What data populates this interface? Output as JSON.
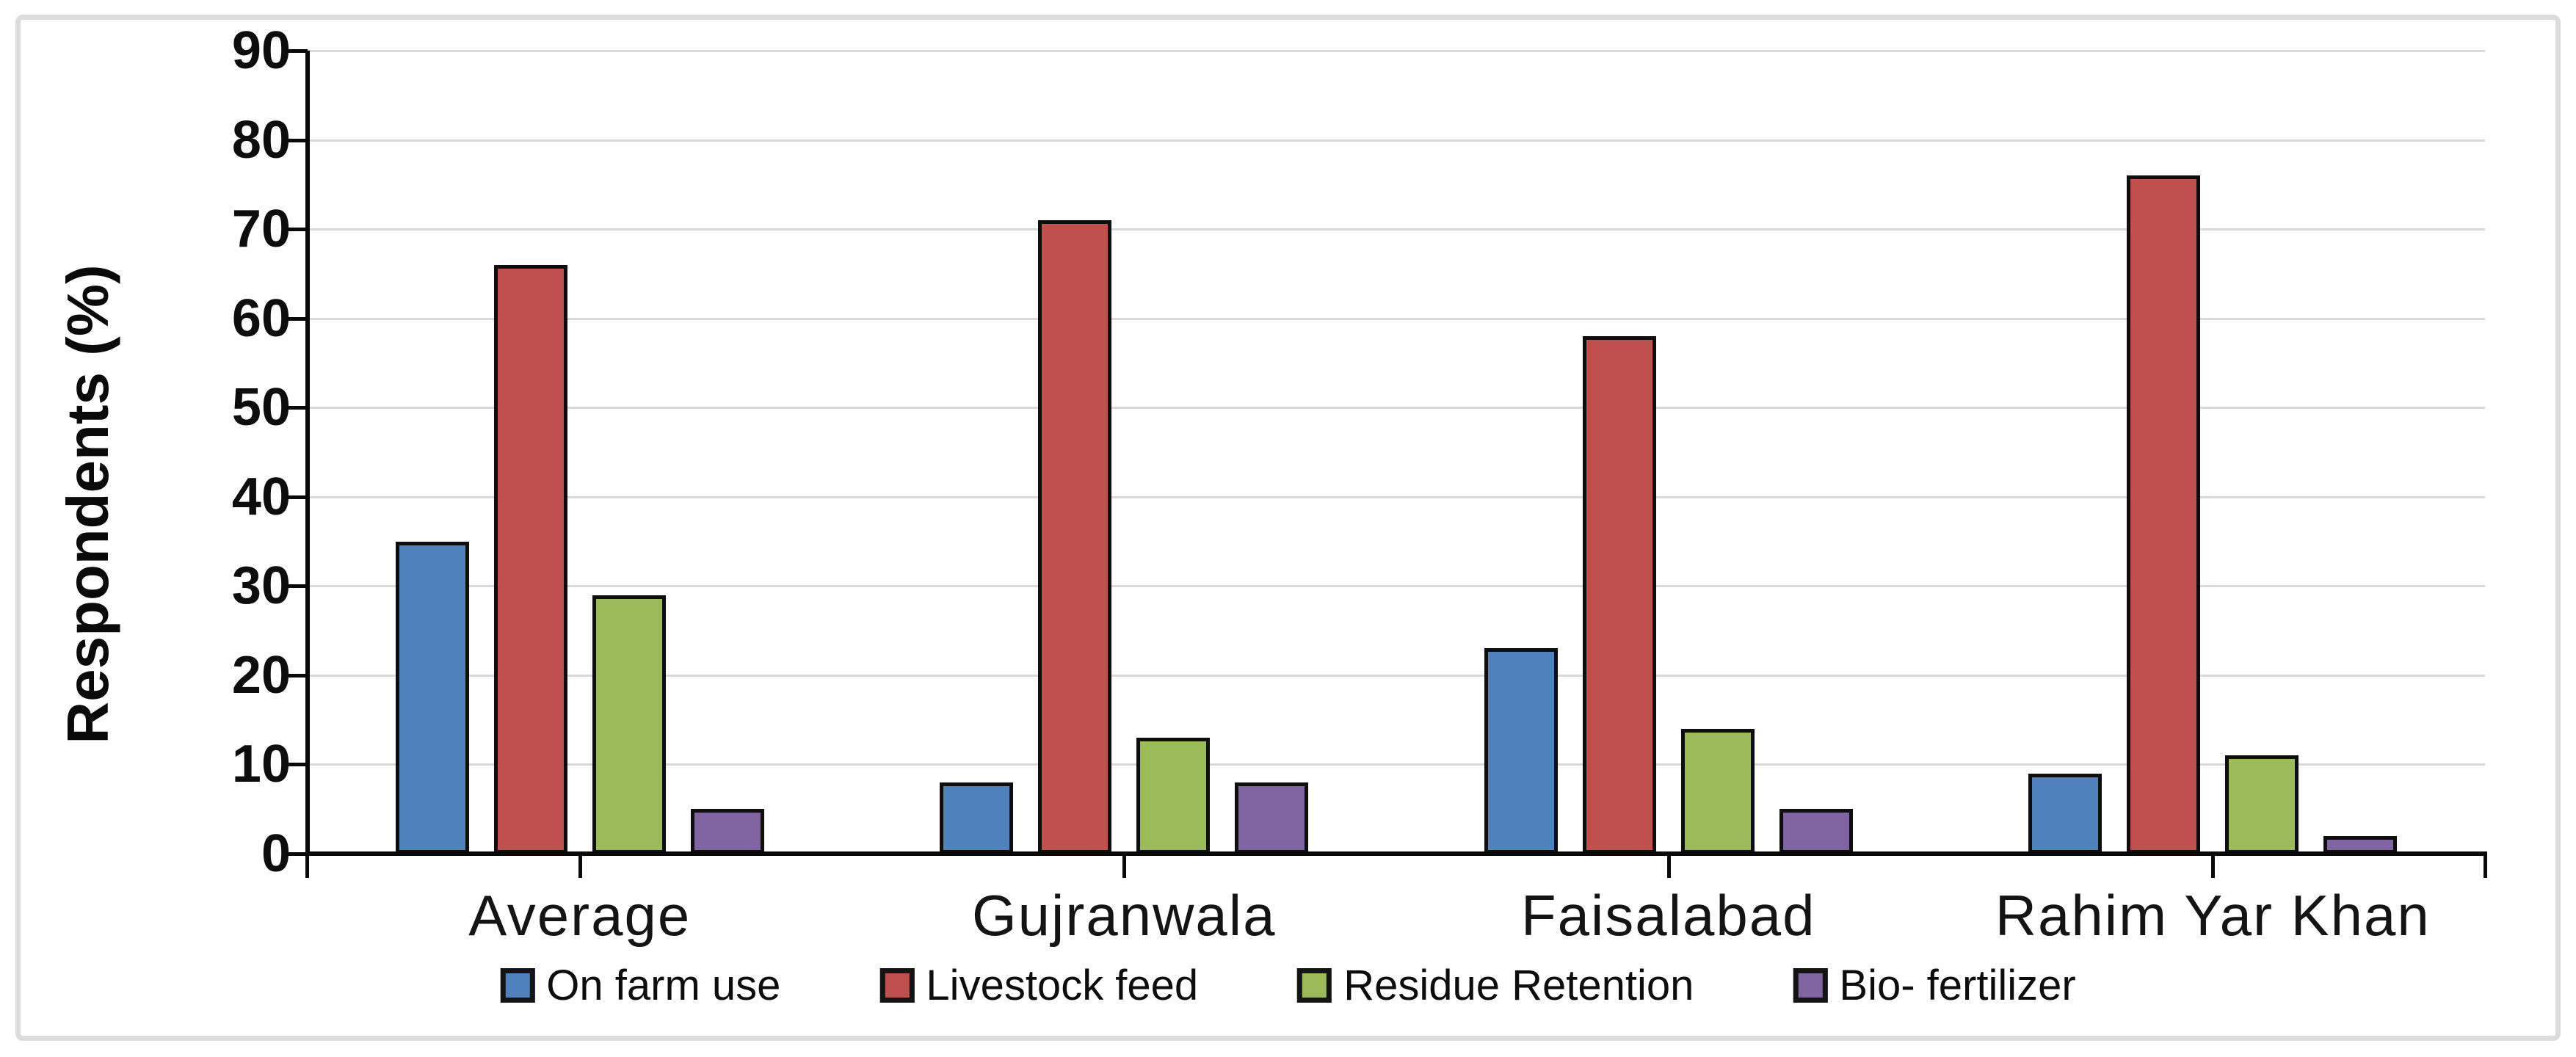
{
  "figure": {
    "background": "#ffffff",
    "frame_border_color": "#dcdcdc"
  },
  "chart_data": {
    "type": "bar",
    "title": "",
    "xlabel": "",
    "ylabel": "Respondents (%)",
    "ylim": [
      0,
      90
    ],
    "yticks": [
      0,
      10,
      20,
      30,
      40,
      50,
      60,
      70,
      80,
      90
    ],
    "grid": "horizontal gridlines on",
    "gridline_color": "#d9d9d9",
    "axis_color": "#0a0a0a",
    "bar_border_color": "#0e0e0e",
    "legend_position": "bottom",
    "categories": [
      "Average",
      "Gujranwala",
      "Faisalabad",
      "Rahim Yar Khan"
    ],
    "series": [
      {
        "name": "On farm use",
        "color": "#4f81bd",
        "values": [
          35,
          8,
          23,
          9
        ]
      },
      {
        "name": "Livestock feed",
        "color": "#c0504d",
        "values": [
          66,
          71,
          58,
          76
        ]
      },
      {
        "name": "Residue Retention",
        "color": "#9bbb59",
        "values": [
          29,
          13,
          14,
          11
        ]
      },
      {
        "name": "Bio- fertilizer",
        "color": "#8064a2",
        "values": [
          5,
          8,
          5,
          2
        ]
      }
    ]
  }
}
